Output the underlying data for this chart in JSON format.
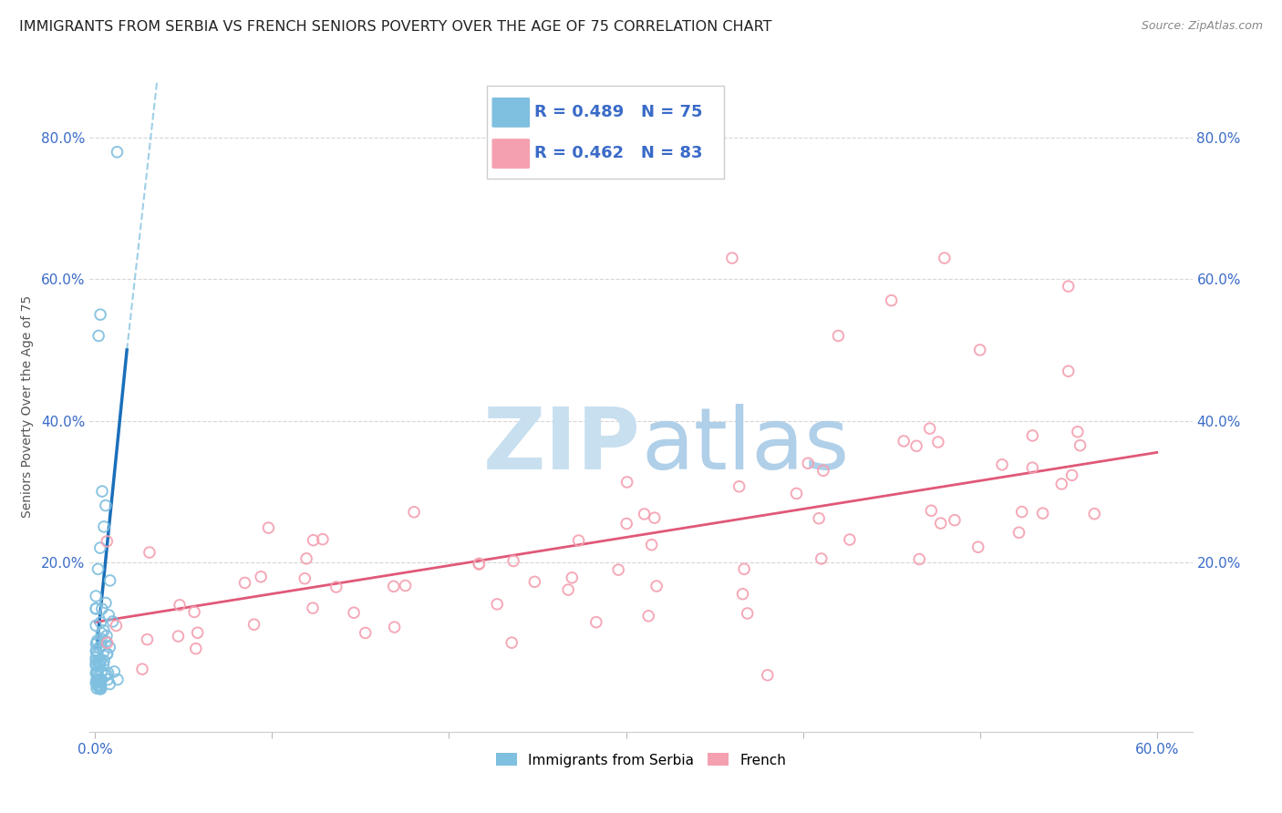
{
  "title": "IMMIGRANTS FROM SERBIA VS FRENCH SENIORS POVERTY OVER THE AGE OF 75 CORRELATION CHART",
  "source": "Source: ZipAtlas.com",
  "ylabel": "Seniors Poverty Over the Age of 75",
  "xlabel_serbia": "Immigrants from Serbia",
  "xlabel_french": "French",
  "xlim": [
    -0.003,
    0.62
  ],
  "ylim": [
    -0.04,
    0.88
  ],
  "yticks": [
    0.2,
    0.4,
    0.6,
    0.8
  ],
  "ytick_labels": [
    "20.0%",
    "40.0%",
    "60.0%",
    "80.0%"
  ],
  "xtick_left_label": "0.0%",
  "xtick_right_label": "60.0%",
  "legend_r1": "R = 0.489",
  "legend_n1": "N = 75",
  "legend_r2": "R = 0.462",
  "legend_n2": "N = 83",
  "color_serbia": "#7fbfdf",
  "color_french": "#f4a0b0",
  "color_serbia_line": "#1a6fba",
  "color_french_line": "#e05878",
  "color_axis_text": "#3a6bc8",
  "watermark_zip_color": "#c8dff0",
  "watermark_atlas_color": "#b0cfe8",
  "background_color": "#ffffff",
  "grid_color": "#cccccc",
  "title_fontsize": 11.5,
  "axis_label_fontsize": 10,
  "tick_fontsize": 11,
  "legend_fontsize": 13,
  "watermark_fontsize": 68
}
